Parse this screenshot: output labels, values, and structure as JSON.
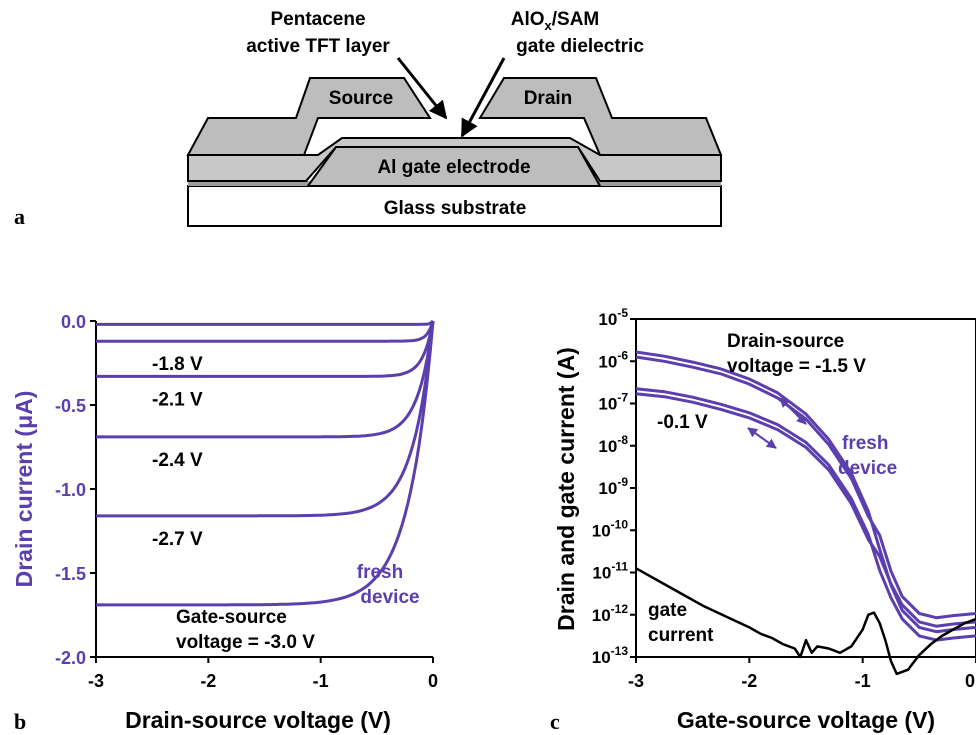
{
  "colors": {
    "purple": "#5B3FAF",
    "black": "#000000",
    "layer_gray": "#BDBDBD"
  },
  "panel_a": {
    "letter": "a",
    "label_pentacene_line1": "Pentacene",
    "label_pentacene_line2": "active TFT layer",
    "label_dielectric_line1": "AlO",
    "label_dielectric_sub": "x",
    "label_dielectric_line1_end": "/SAM",
    "label_dielectric_line2": "gate dielectric",
    "source": "Source",
    "drain": "Drain",
    "gate": "Al gate electrode",
    "substrate": "Glass substrate"
  },
  "panel_b": {
    "letter": "b",
    "annotation_fresh_line1": "fresh",
    "annotation_fresh_line2": "device",
    "annotation_gate_line1": "Gate-source",
    "annotation_gate_line2": "voltage = -3.0 V"
  },
  "panel_c": {
    "letter": "c",
    "annotation_drain_line1": "Drain-source",
    "annotation_drain_line2": "voltage = -1.5 V",
    "annotation_01": "-0.1 V",
    "annotation_fresh_line1": "fresh",
    "annotation_fresh_line2": "device",
    "annotation_gate_line1": "gate",
    "annotation_gate_line2": "current"
  },
  "chart_data": [
    {
      "type": "line",
      "xlabel": "Drain-source voltage (V)",
      "ylabel": "Drain current (μA)",
      "xlim": [
        -3,
        0
      ],
      "ylim": [
        -2.0,
        0.0
      ],
      "xticks": [
        "-3",
        "-2",
        "-1",
        "0"
      ],
      "xtick_values": [
        -3,
        -2,
        -1,
        0
      ],
      "yticks": [
        "0.0",
        "-0.5",
        "-1.0",
        "-1.5",
        "-2.0"
      ],
      "ytick_values": [
        0.0,
        -0.5,
        -1.0,
        -1.5,
        -2.0
      ],
      "grid": false,
      "series": [
        {
          "name": "",
          "isat": -0.02
        },
        {
          "name": "-1.8 V",
          "isat": -0.12
        },
        {
          "name": "-2.1 V",
          "isat": -0.33
        },
        {
          "name": "-2.4 V",
          "isat": -0.69
        },
        {
          "name": "-2.7 V",
          "isat": -1.16
        },
        {
          "name": "-3.0 V",
          "isat": -1.69
        }
      ]
    },
    {
      "type": "line",
      "xlabel": "Gate-source voltage (V)",
      "ylabel": "Drain and gate current (A)",
      "xlim": [
        -3,
        0
      ],
      "ylim_log10": [
        -13,
        -5
      ],
      "xticks": [
        "-3",
        "-2",
        "-1",
        "0"
      ],
      "xtick_values": [
        -3,
        -2,
        -1,
        0
      ],
      "ytick_base": "10",
      "ytick_exponents": [
        "-5",
        "-6",
        "-7",
        "-8",
        "-9",
        "-10",
        "-11",
        "-12",
        "-13"
      ],
      "ytick_log_values": [
        -5,
        -6,
        -7,
        -8,
        -9,
        -10,
        -11,
        -12,
        -13
      ],
      "grid": false,
      "series": [
        {
          "name": "Drain-source voltage = -1.5 V",
          "color": "#5B3FAF",
          "x": [
            -3.0,
            -2.75,
            -2.5,
            -2.25,
            -2.0,
            -1.75,
            -1.5,
            -1.3,
            -1.1,
            -0.95,
            -0.85,
            -0.75,
            -0.65,
            -0.5,
            -0.35,
            -0.2,
            0.0
          ],
          "log10_y": [
            -5.78,
            -5.88,
            -6.02,
            -6.18,
            -6.42,
            -6.75,
            -7.25,
            -7.85,
            -8.65,
            -9.55,
            -10.45,
            -11.3,
            -11.9,
            -12.3,
            -12.4,
            -12.35,
            -12.3
          ]
        },
        {
          "name": "-0.1 V",
          "color": "#5B3FAF",
          "x": [
            -3.0,
            -2.75,
            -2.5,
            -2.25,
            -2.0,
            -1.75,
            -1.5,
            -1.3,
            -1.1,
            -0.95,
            -0.85,
            -0.75,
            -0.65,
            -0.5,
            -0.35,
            -0.2,
            0.0
          ],
          "log10_y": [
            -6.65,
            -6.72,
            -6.85,
            -7.02,
            -7.22,
            -7.5,
            -7.92,
            -8.45,
            -9.25,
            -10.1,
            -10.95,
            -11.6,
            -12.1,
            -12.5,
            -12.6,
            -12.55,
            -12.5
          ]
        },
        {
          "name": "gate current",
          "color": "#000000",
          "x": [
            -3.0,
            -2.8,
            -2.6,
            -2.4,
            -2.2,
            -2.0,
            -1.9,
            -1.8,
            -1.7,
            -1.6,
            -1.55,
            -1.5,
            -1.45,
            -1.4,
            -1.3,
            -1.2,
            -1.1,
            -1.0,
            -0.95,
            -0.9,
            -0.85,
            -0.8,
            -0.75,
            -0.7,
            -0.6,
            -0.5,
            -0.4,
            -0.3,
            -0.2,
            -0.1,
            0.0
          ],
          "log10_y": [
            -10.9,
            -11.2,
            -11.5,
            -11.8,
            -12.05,
            -12.3,
            -12.45,
            -12.55,
            -12.7,
            -12.8,
            -13.0,
            -12.6,
            -12.9,
            -12.75,
            -12.8,
            -12.9,
            -12.75,
            -12.35,
            -12.0,
            -11.95,
            -12.2,
            -12.6,
            -13.1,
            -13.4,
            -13.3,
            -12.95,
            -12.7,
            -12.5,
            -12.35,
            -12.2,
            -12.1
          ]
        }
      ]
    }
  ]
}
